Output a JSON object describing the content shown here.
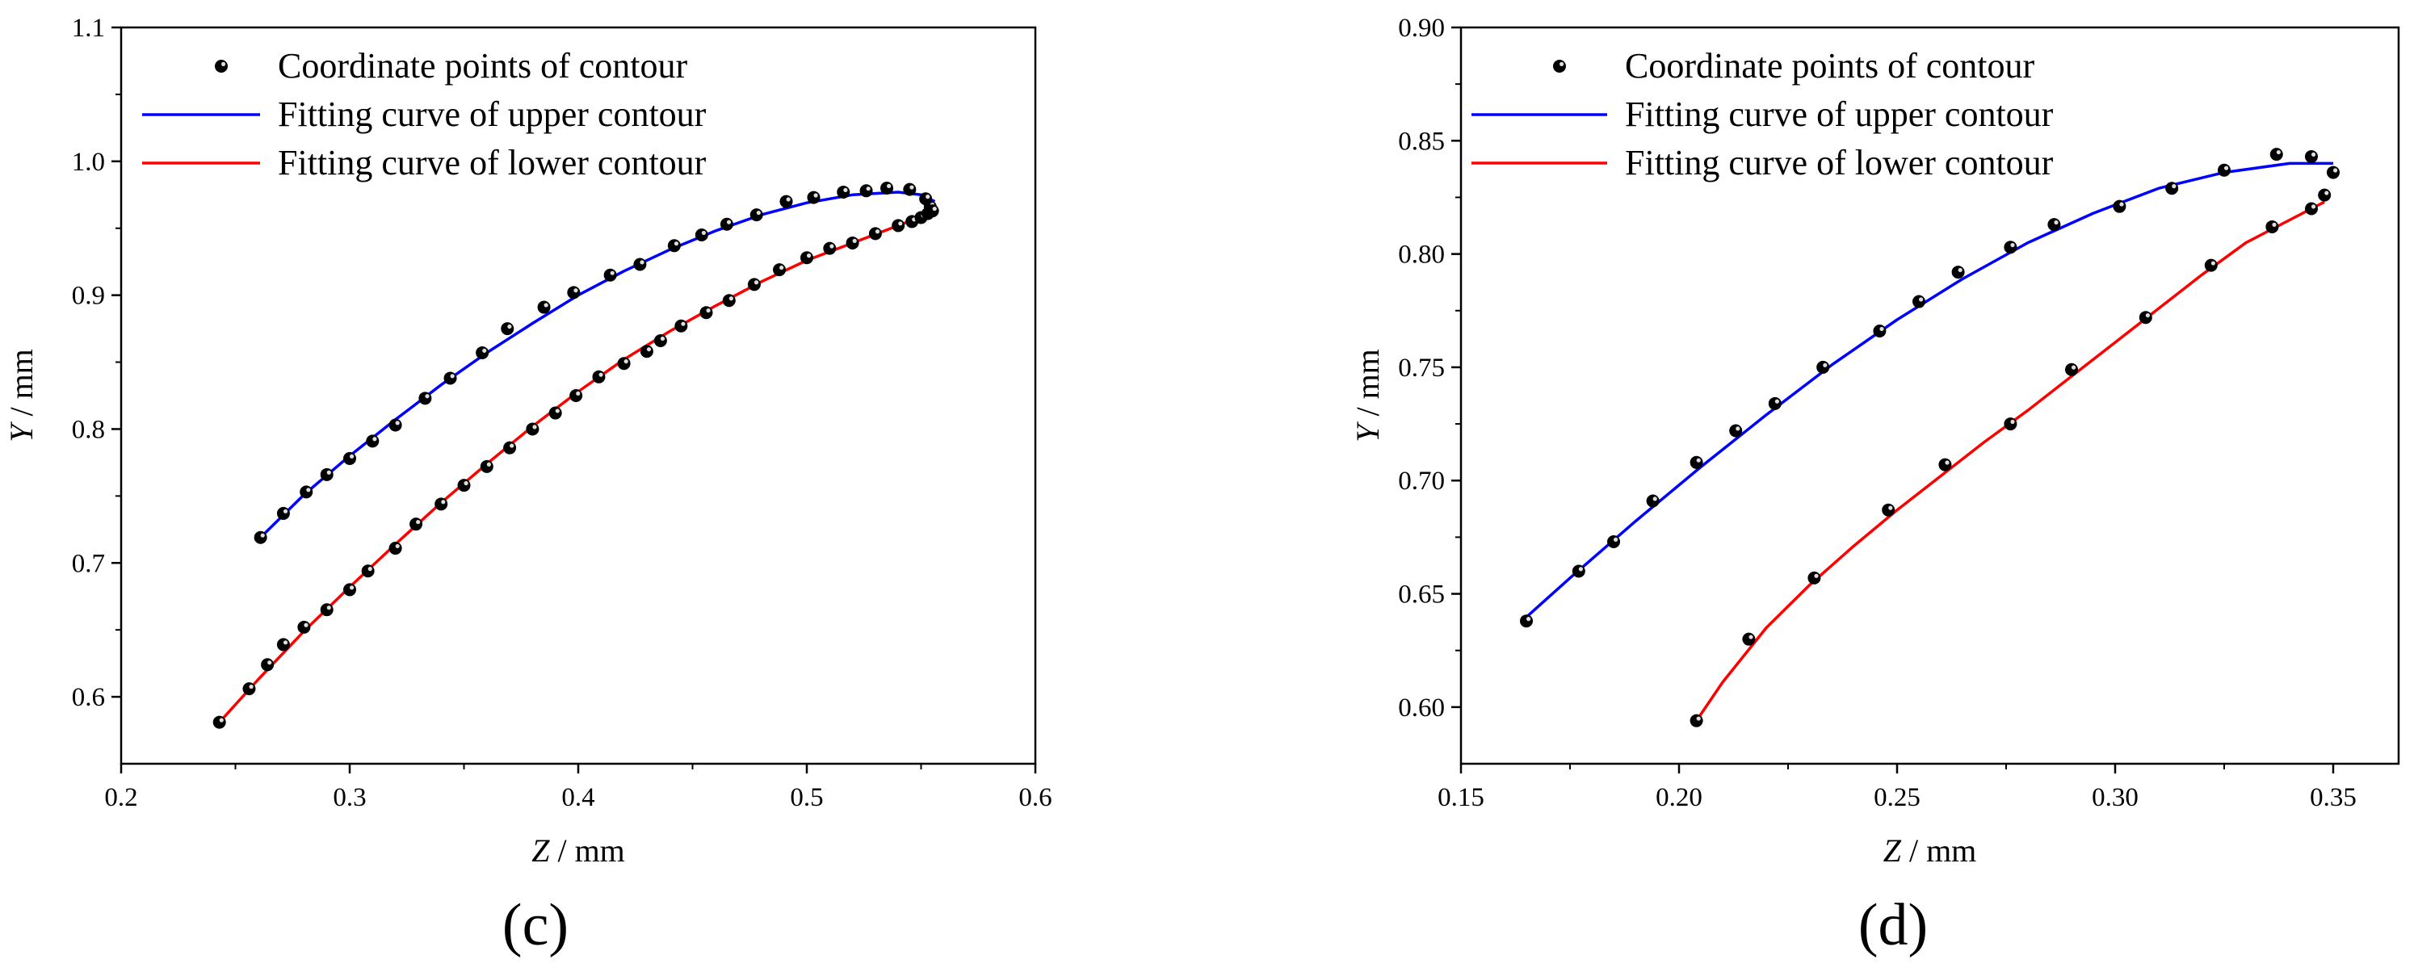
{
  "chart_data": [
    {
      "type": "scatter",
      "panel_label": "(c)",
      "xlabel_var": "Z",
      "xlabel_unit": " / mm",
      "ylabel_var": "Y",
      "ylabel_unit": " / mm",
      "xlim": [
        0.2,
        0.6
      ],
      "ylim": [
        0.55,
        1.1
      ],
      "xticks": [
        0.2,
        0.3,
        0.4,
        0.5,
        0.6
      ],
      "xtick_labels": [
        "0.2",
        "0.3",
        "0.4",
        "0.5",
        "0.6"
      ],
      "yticks": [
        0.6,
        0.7,
        0.8,
        0.9,
        1.0,
        1.1
      ],
      "ytick_labels": [
        "0.6",
        "0.7",
        "0.8",
        "0.9",
        "1.0",
        "1.1"
      ],
      "legend_position": "top-left",
      "series": [
        {
          "name": "Coordinate points of contour",
          "kind": "points",
          "color": "#000000",
          "points": [
            [
              0.261,
              0.719
            ],
            [
              0.271,
              0.737
            ],
            [
              0.281,
              0.753
            ],
            [
              0.29,
              0.766
            ],
            [
              0.3,
              0.778
            ],
            [
              0.31,
              0.791
            ],
            [
              0.32,
              0.803
            ],
            [
              0.333,
              0.823
            ],
            [
              0.344,
              0.838
            ],
            [
              0.358,
              0.857
            ],
            [
              0.369,
              0.875
            ],
            [
              0.385,
              0.891
            ],
            [
              0.398,
              0.902
            ],
            [
              0.414,
              0.915
            ],
            [
              0.427,
              0.923
            ],
            [
              0.442,
              0.937
            ],
            [
              0.454,
              0.945
            ],
            [
              0.465,
              0.953
            ],
            [
              0.478,
              0.96
            ],
            [
              0.491,
              0.97
            ],
            [
              0.503,
              0.973
            ],
            [
              0.516,
              0.977
            ],
            [
              0.526,
              0.978
            ],
            [
              0.535,
              0.98
            ],
            [
              0.545,
              0.979
            ],
            [
              0.552,
              0.972
            ],
            [
              0.554,
              0.966
            ],
            [
              0.243,
              0.581
            ],
            [
              0.256,
              0.606
            ],
            [
              0.264,
              0.624
            ],
            [
              0.271,
              0.639
            ],
            [
              0.28,
              0.652
            ],
            [
              0.29,
              0.665
            ],
            [
              0.3,
              0.68
            ],
            [
              0.308,
              0.694
            ],
            [
              0.32,
              0.711
            ],
            [
              0.329,
              0.729
            ],
            [
              0.34,
              0.744
            ],
            [
              0.35,
              0.758
            ],
            [
              0.36,
              0.772
            ],
            [
              0.37,
              0.786
            ],
            [
              0.38,
              0.8
            ],
            [
              0.39,
              0.812
            ],
            [
              0.399,
              0.825
            ],
            [
              0.409,
              0.839
            ],
            [
              0.42,
              0.849
            ],
            [
              0.43,
              0.858
            ],
            [
              0.436,
              0.866
            ],
            [
              0.445,
              0.877
            ],
            [
              0.456,
              0.887
            ],
            [
              0.466,
              0.896
            ],
            [
              0.477,
              0.908
            ],
            [
              0.488,
              0.919
            ],
            [
              0.5,
              0.928
            ],
            [
              0.51,
              0.935
            ],
            [
              0.52,
              0.939
            ],
            [
              0.53,
              0.946
            ],
            [
              0.54,
              0.952
            ],
            [
              0.546,
              0.955
            ],
            [
              0.55,
              0.958
            ],
            [
              0.553,
              0.961
            ],
            [
              0.555,
              0.963
            ]
          ]
        },
        {
          "name": "Fitting curve of  upper contour",
          "kind": "line",
          "color": "#0000ff",
          "points": [
            [
              0.261,
              0.719
            ],
            [
              0.28,
              0.751
            ],
            [
              0.3,
              0.78
            ],
            [
              0.32,
              0.807
            ],
            [
              0.34,
              0.833
            ],
            [
              0.36,
              0.857
            ],
            [
              0.38,
              0.879
            ],
            [
              0.4,
              0.9
            ],
            [
              0.42,
              0.918
            ],
            [
              0.44,
              0.934
            ],
            [
              0.46,
              0.948
            ],
            [
              0.48,
              0.96
            ],
            [
              0.5,
              0.969
            ],
            [
              0.52,
              0.975
            ],
            [
              0.54,
              0.977
            ],
            [
              0.55,
              0.975
            ],
            [
              0.556,
              0.97
            ]
          ]
        },
        {
          "name": "Fitting curve of  lower contour",
          "kind": "line",
          "color": "#ff0000",
          "points": [
            [
              0.243,
              0.581
            ],
            [
              0.26,
              0.613
            ],
            [
              0.28,
              0.649
            ],
            [
              0.3,
              0.682
            ],
            [
              0.32,
              0.714
            ],
            [
              0.34,
              0.745
            ],
            [
              0.36,
              0.774
            ],
            [
              0.38,
              0.802
            ],
            [
              0.4,
              0.828
            ],
            [
              0.42,
              0.852
            ],
            [
              0.44,
              0.873
            ],
            [
              0.46,
              0.892
            ],
            [
              0.48,
              0.91
            ],
            [
              0.5,
              0.926
            ],
            [
              0.52,
              0.939
            ],
            [
              0.54,
              0.952
            ],
            [
              0.555,
              0.962
            ],
            [
              0.557,
              0.965
            ]
          ]
        }
      ]
    },
    {
      "type": "scatter",
      "panel_label": "(d)",
      "xlabel_var": "Z",
      "xlabel_unit": " / mm",
      "ylabel_var": "Y",
      "ylabel_unit": " / mm",
      "xlim": [
        0.15,
        0.365
      ],
      "ylim": [
        0.575,
        0.9
      ],
      "xticks": [
        0.15,
        0.2,
        0.25,
        0.3,
        0.35
      ],
      "xtick_labels": [
        "0.15",
        "0.20",
        "0.25",
        "0.30",
        "0.35"
      ],
      "yticks": [
        0.6,
        0.65,
        0.7,
        0.75,
        0.8,
        0.85,
        0.9
      ],
      "ytick_labels": [
        "0.60",
        "0.65",
        "0.70",
        "0.75",
        "0.80",
        "0.85",
        "0.90"
      ],
      "legend_position": "top-left",
      "series": [
        {
          "name": "Coordinate points of contour",
          "kind": "points",
          "color": "#000000",
          "points": [
            [
              0.165,
              0.638
            ],
            [
              0.177,
              0.66
            ],
            [
              0.185,
              0.673
            ],
            [
              0.194,
              0.691
            ],
            [
              0.204,
              0.708
            ],
            [
              0.213,
              0.722
            ],
            [
              0.222,
              0.734
            ],
            [
              0.233,
              0.75
            ],
            [
              0.246,
              0.766
            ],
            [
              0.255,
              0.779
            ],
            [
              0.264,
              0.792
            ],
            [
              0.276,
              0.803
            ],
            [
              0.286,
              0.813
            ],
            [
              0.301,
              0.821
            ],
            [
              0.313,
              0.829
            ],
            [
              0.325,
              0.837
            ],
            [
              0.337,
              0.844
            ],
            [
              0.345,
              0.843
            ],
            [
              0.35,
              0.836
            ],
            [
              0.204,
              0.594
            ],
            [
              0.216,
              0.63
            ],
            [
              0.231,
              0.657
            ],
            [
              0.248,
              0.687
            ],
            [
              0.261,
              0.707
            ],
            [
              0.276,
              0.725
            ],
            [
              0.29,
              0.749
            ],
            [
              0.307,
              0.772
            ],
            [
              0.322,
              0.795
            ],
            [
              0.336,
              0.812
            ],
            [
              0.345,
              0.82
            ],
            [
              0.348,
              0.826
            ]
          ]
        },
        {
          "name": "Fitting curve of  upper contour",
          "kind": "line",
          "color": "#0000ff",
          "points": [
            [
              0.164,
              0.638
            ],
            [
              0.175,
              0.657
            ],
            [
              0.19,
              0.682
            ],
            [
              0.205,
              0.706
            ],
            [
              0.22,
              0.729
            ],
            [
              0.235,
              0.751
            ],
            [
              0.25,
              0.771
            ],
            [
              0.265,
              0.789
            ],
            [
              0.28,
              0.805
            ],
            [
              0.295,
              0.818
            ],
            [
              0.31,
              0.829
            ],
            [
              0.325,
              0.836
            ],
            [
              0.34,
              0.84
            ],
            [
              0.35,
              0.84
            ]
          ]
        },
        {
          "name": "Fitting curve of  lower contour",
          "kind": "line",
          "color": "#ff0000",
          "points": [
            [
              0.204,
              0.594
            ],
            [
              0.21,
              0.611
            ],
            [
              0.22,
              0.635
            ],
            [
              0.23,
              0.654
            ],
            [
              0.24,
              0.671
            ],
            [
              0.25,
              0.687
            ],
            [
              0.26,
              0.702
            ],
            [
              0.27,
              0.717
            ],
            [
              0.28,
              0.731
            ],
            [
              0.29,
              0.746
            ],
            [
              0.3,
              0.761
            ],
            [
              0.31,
              0.776
            ],
            [
              0.32,
              0.791
            ],
            [
              0.33,
              0.805
            ],
            [
              0.34,
              0.815
            ],
            [
              0.348,
              0.823
            ]
          ]
        }
      ]
    }
  ]
}
